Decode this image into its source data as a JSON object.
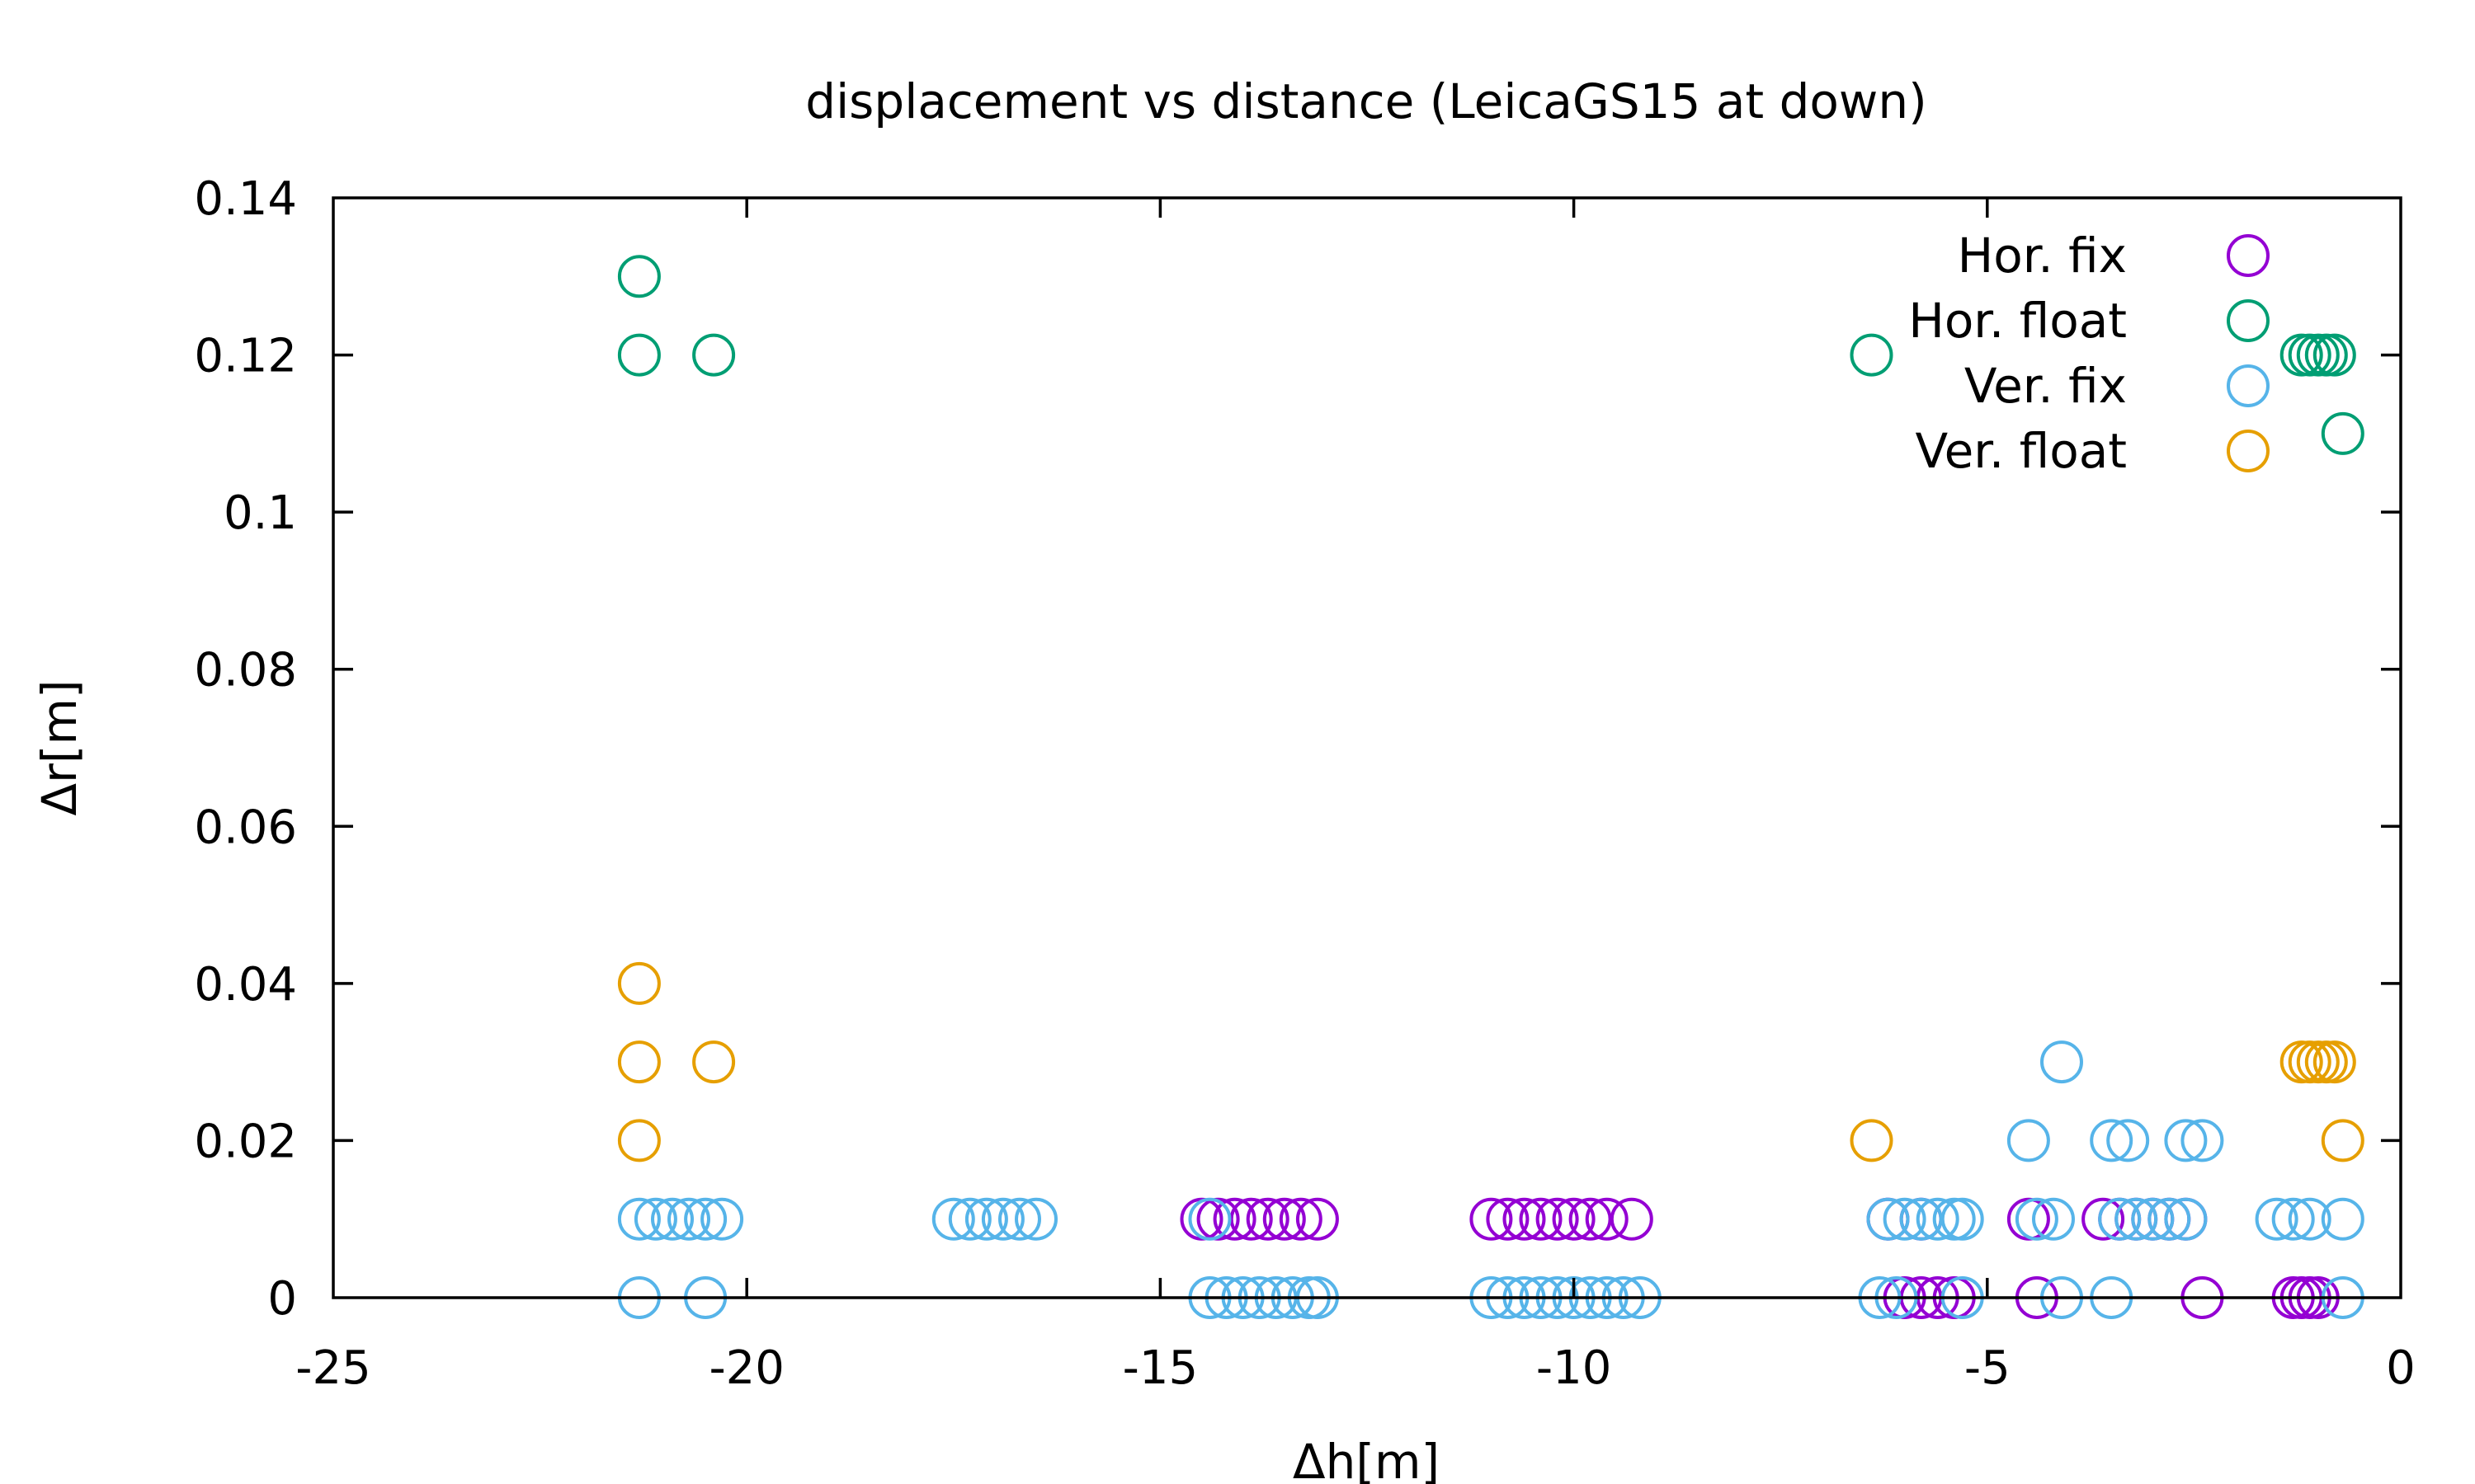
{
  "chart_data": {
    "type": "scatter",
    "title": "displacement vs distance (LeicaGS15 at down)",
    "xlabel": "Δh[m]",
    "ylabel": "Δr[m]",
    "xlim": [
      -25,
      0
    ],
    "ylim": [
      0,
      0.14
    ],
    "xticks": [
      -25,
      -20,
      -15,
      -10,
      -5,
      0
    ],
    "xtick_labels": [
      "-25",
      "-20",
      "-15",
      "-10",
      "-5",
      "0"
    ],
    "yticks": [
      0,
      0.02,
      0.04,
      0.06,
      0.08,
      0.1,
      0.12,
      0.14
    ],
    "ytick_labels": [
      "0",
      "0.02",
      "0.04",
      "0.06",
      "0.08",
      "0.1",
      "0.12",
      "0.14"
    ],
    "grid": false,
    "legend_position": "top-right",
    "marker": "open-circle",
    "series": [
      {
        "name": "Hor. fix",
        "color": "#9400d3",
        "points": [
          {
            "x": -14.5,
            "y": 0.01
          },
          {
            "x": -14.3,
            "y": 0.01
          },
          {
            "x": -14.1,
            "y": 0.01
          },
          {
            "x": -13.9,
            "y": 0.01
          },
          {
            "x": -13.7,
            "y": 0.01
          },
          {
            "x": -13.5,
            "y": 0.01
          },
          {
            "x": -13.3,
            "y": 0.01
          },
          {
            "x": -13.1,
            "y": 0.01
          },
          {
            "x": -11.0,
            "y": 0.01
          },
          {
            "x": -10.8,
            "y": 0.01
          },
          {
            "x": -10.6,
            "y": 0.01
          },
          {
            "x": -10.4,
            "y": 0.01
          },
          {
            "x": -10.2,
            "y": 0.01
          },
          {
            "x": -10.0,
            "y": 0.01
          },
          {
            "x": -9.8,
            "y": 0.01
          },
          {
            "x": -9.6,
            "y": 0.01
          },
          {
            "x": -9.3,
            "y": 0.01
          },
          {
            "x": -6.2,
            "y": 0.01
          },
          {
            "x": -5.8,
            "y": 0.01
          },
          {
            "x": -6.0,
            "y": 0.0
          },
          {
            "x": -5.8,
            "y": 0.0
          },
          {
            "x": -5.6,
            "y": 0.0
          },
          {
            "x": -5.4,
            "y": 0.0
          },
          {
            "x": -4.5,
            "y": 0.01
          },
          {
            "x": -4.4,
            "y": 0.0
          },
          {
            "x": -3.6,
            "y": 0.01
          },
          {
            "x": -3.4,
            "y": 0.01
          },
          {
            "x": -3.2,
            "y": 0.01
          },
          {
            "x": -3.0,
            "y": 0.01
          },
          {
            "x": -2.8,
            "y": 0.01
          },
          {
            "x": -2.6,
            "y": 0.01
          },
          {
            "x": -2.4,
            "y": 0.0
          },
          {
            "x": -1.3,
            "y": 0.0
          },
          {
            "x": -1.2,
            "y": 0.0
          },
          {
            "x": -1.1,
            "y": 0.0
          },
          {
            "x": -1.0,
            "y": 0.0
          }
        ]
      },
      {
        "name": "Hor. float",
        "color": "#009e73",
        "points": [
          {
            "x": -21.3,
            "y": 0.13
          },
          {
            "x": -21.3,
            "y": 0.12
          },
          {
            "x": -20.4,
            "y": 0.12
          },
          {
            "x": -6.4,
            "y": 0.12
          },
          {
            "x": -1.2,
            "y": 0.12
          },
          {
            "x": -1.1,
            "y": 0.12
          },
          {
            "x": -1.0,
            "y": 0.12
          },
          {
            "x": -0.9,
            "y": 0.12
          },
          {
            "x": -0.8,
            "y": 0.12
          },
          {
            "x": -0.7,
            "y": 0.11
          }
        ]
      },
      {
        "name": "Ver. fix",
        "color": "#56b4e9",
        "points": [
          {
            "x": -21.3,
            "y": 0.01
          },
          {
            "x": -21.1,
            "y": 0.01
          },
          {
            "x": -20.9,
            "y": 0.01
          },
          {
            "x": -20.7,
            "y": 0.01
          },
          {
            "x": -20.5,
            "y": 0.01
          },
          {
            "x": -20.3,
            "y": 0.01
          },
          {
            "x": -21.3,
            "y": 0.0
          },
          {
            "x": -20.5,
            "y": 0.0
          },
          {
            "x": -17.5,
            "y": 0.01
          },
          {
            "x": -17.3,
            "y": 0.01
          },
          {
            "x": -17.1,
            "y": 0.01
          },
          {
            "x": -16.9,
            "y": 0.01
          },
          {
            "x": -16.7,
            "y": 0.01
          },
          {
            "x": -16.5,
            "y": 0.01
          },
          {
            "x": -14.4,
            "y": 0.01
          },
          {
            "x": -14.4,
            "y": 0.0
          },
          {
            "x": -14.2,
            "y": 0.0
          },
          {
            "x": -14.0,
            "y": 0.0
          },
          {
            "x": -13.8,
            "y": 0.0
          },
          {
            "x": -13.6,
            "y": 0.0
          },
          {
            "x": -13.4,
            "y": 0.0
          },
          {
            "x": -13.2,
            "y": 0.0
          },
          {
            "x": -13.1,
            "y": 0.0
          },
          {
            "x": -11.0,
            "y": 0.0
          },
          {
            "x": -10.8,
            "y": 0.0
          },
          {
            "x": -10.6,
            "y": 0.0
          },
          {
            "x": -10.4,
            "y": 0.0
          },
          {
            "x": -10.2,
            "y": 0.0
          },
          {
            "x": -10.0,
            "y": 0.0
          },
          {
            "x": -9.8,
            "y": 0.0
          },
          {
            "x": -9.6,
            "y": 0.0
          },
          {
            "x": -9.4,
            "y": 0.0
          },
          {
            "x": -9.2,
            "y": 0.0
          },
          {
            "x": -6.2,
            "y": 0.01
          },
          {
            "x": -6.0,
            "y": 0.01
          },
          {
            "x": -5.8,
            "y": 0.01
          },
          {
            "x": -5.6,
            "y": 0.01
          },
          {
            "x": -5.4,
            "y": 0.01
          },
          {
            "x": -5.3,
            "y": 0.01
          },
          {
            "x": -6.3,
            "y": 0.0
          },
          {
            "x": -6.1,
            "y": 0.0
          },
          {
            "x": -5.3,
            "y": 0.0
          },
          {
            "x": -4.5,
            "y": 0.02
          },
          {
            "x": -4.1,
            "y": 0.03
          },
          {
            "x": -4.4,
            "y": 0.01
          },
          {
            "x": -4.2,
            "y": 0.01
          },
          {
            "x": -4.1,
            "y": 0.0
          },
          {
            "x": -3.5,
            "y": 0.02
          },
          {
            "x": -3.3,
            "y": 0.02
          },
          {
            "x": -3.5,
            "y": 0.0
          },
          {
            "x": -3.4,
            "y": 0.01
          },
          {
            "x": -3.2,
            "y": 0.01
          },
          {
            "x": -3.0,
            "y": 0.01
          },
          {
            "x": -2.8,
            "y": 0.01
          },
          {
            "x": -2.6,
            "y": 0.01
          },
          {
            "x": -2.6,
            "y": 0.02
          },
          {
            "x": -2.4,
            "y": 0.02
          },
          {
            "x": -1.5,
            "y": 0.01
          },
          {
            "x": -1.3,
            "y": 0.01
          },
          {
            "x": -1.1,
            "y": 0.01
          },
          {
            "x": -0.7,
            "y": 0.01
          },
          {
            "x": -0.7,
            "y": 0.0
          }
        ]
      },
      {
        "name": "Ver. float",
        "color": "#e69f00",
        "points": [
          {
            "x": -21.3,
            "y": 0.04
          },
          {
            "x": -21.3,
            "y": 0.03
          },
          {
            "x": -20.4,
            "y": 0.03
          },
          {
            "x": -21.3,
            "y": 0.02
          },
          {
            "x": -6.4,
            "y": 0.02
          },
          {
            "x": -1.2,
            "y": 0.03
          },
          {
            "x": -1.1,
            "y": 0.03
          },
          {
            "x": -1.0,
            "y": 0.03
          },
          {
            "x": -0.9,
            "y": 0.03
          },
          {
            "x": -0.8,
            "y": 0.03
          },
          {
            "x": -0.7,
            "y": 0.02
          }
        ]
      }
    ]
  }
}
